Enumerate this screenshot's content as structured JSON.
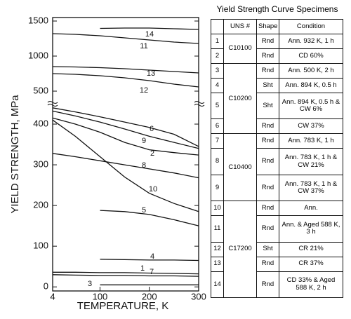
{
  "chart_data": [
    {
      "type": "line",
      "color": "#111",
      "x": [
        4,
        50,
        100,
        150,
        200,
        250,
        300
      ],
      "ylim": [
        320,
        1550
      ],
      "yticks": [
        500,
        1000,
        1500
      ],
      "series": [
        {
          "name": "14",
          "values": [
            null,
            null,
            1395,
            1400,
            1400,
            1390,
            1380
          ]
        },
        {
          "name": "11",
          "values": [
            1320,
            1310,
            1290,
            1260,
            1230,
            1200,
            1180
          ]
        },
        {
          "name": "13",
          "values": [
            850,
            845,
            835,
            820,
            800,
            780,
            760
          ]
        },
        {
          "name": "12",
          "values": [
            750,
            740,
            720,
            690,
            650,
            600,
            560
          ]
        }
      ]
    },
    {
      "type": "line",
      "color": "#111",
      "x_label": "TEMPERATURE, K",
      "y_label": "YIELD STRENGTH, MPa",
      "x": [
        4,
        50,
        100,
        150,
        200,
        250,
        300
      ],
      "xlim": [
        4,
        300
      ],
      "xticks": [
        4,
        100,
        200,
        300
      ],
      "ylim": [
        -10,
        450
      ],
      "yticks": [
        0,
        100,
        200,
        300,
        400
      ],
      "series": [
        {
          "name": "6",
          "values": [
            440,
            430,
            418,
            405,
            392,
            375,
            345
          ]
        },
        {
          "name": "9",
          "values": [
            432,
            420,
            405,
            388,
            370,
            355,
            340
          ]
        },
        {
          "name": "2",
          "values": [
            415,
            400,
            380,
            355,
            337,
            330,
            324
          ]
        },
        {
          "name": "8",
          "values": [
            328,
            320,
            310,
            300,
            290,
            280,
            268
          ]
        },
        {
          "name": "10",
          "values": [
            410,
            370,
            320,
            270,
            230,
            205,
            185
          ]
        },
        {
          "name": "5",
          "values": [
            null,
            null,
            188,
            185,
            178,
            165,
            150
          ]
        },
        {
          "name": "4",
          "values": [
            null,
            null,
            68,
            67,
            66,
            66,
            65
          ]
        },
        {
          "name": "1",
          "values": [
            36,
            36,
            35,
            35,
            34,
            33,
            32
          ]
        },
        {
          "name": "7",
          "values": [
            30,
            29,
            28,
            28,
            27,
            27,
            26
          ]
        },
        {
          "name": "3",
          "values": [
            null,
            null,
            5,
            5,
            5,
            5,
            5
          ]
        }
      ]
    }
  ],
  "table": {
    "title": "Yield Strength Curve Specimens",
    "headers": [
      "UNS #",
      "Shape",
      "Condition"
    ],
    "groups": [
      {
        "uns": "C10100",
        "rows": [
          {
            "no": "1",
            "shape": "Rnd",
            "condition": "Ann. 932 K, 1 h"
          },
          {
            "no": "2",
            "shape": "Rnd",
            "condition": "CD 60%"
          }
        ]
      },
      {
        "uns": "C10200",
        "rows": [
          {
            "no": "3",
            "shape": "Rnd",
            "condition": "Ann. 500 K, 2 h"
          },
          {
            "no": "4",
            "shape": "Sht",
            "condition": "Ann. 894 K, 0.5 h"
          },
          {
            "no": "5",
            "shape": "Sht",
            "condition": "Ann. 894 K, 0.5 h & CW 6%"
          },
          {
            "no": "6",
            "shape": "Rnd",
            "condition": "CW 37%"
          }
        ]
      },
      {
        "uns": "C10400",
        "rows": [
          {
            "no": "7",
            "shape": "Rnd",
            "condition": "Ann. 783 K, 1 h"
          },
          {
            "no": "8",
            "shape": "Rnd",
            "condition": "Ann. 783 K, 1 h & CW 21%"
          },
          {
            "no": "9",
            "shape": "Rnd",
            "condition": "Ann. 783 K, 1 h & CW 37%"
          }
        ]
      },
      {
        "uns": "C17200",
        "rows": [
          {
            "no": "10",
            "shape": "Rnd",
            "condition": "Ann."
          },
          {
            "no": "11",
            "shape": "Rnd",
            "condition": "Ann. & Aged 588 K, 3 h"
          },
          {
            "no": "12",
            "shape": "Sht",
            "condition": "CR 21%"
          },
          {
            "no": "13",
            "shape": "Rnd",
            "condition": "CR 37%"
          },
          {
            "no": "14",
            "shape": "Rnd",
            "condition": "CD 33% & Aged 588 K, 2 h"
          }
        ]
      }
    ]
  }
}
